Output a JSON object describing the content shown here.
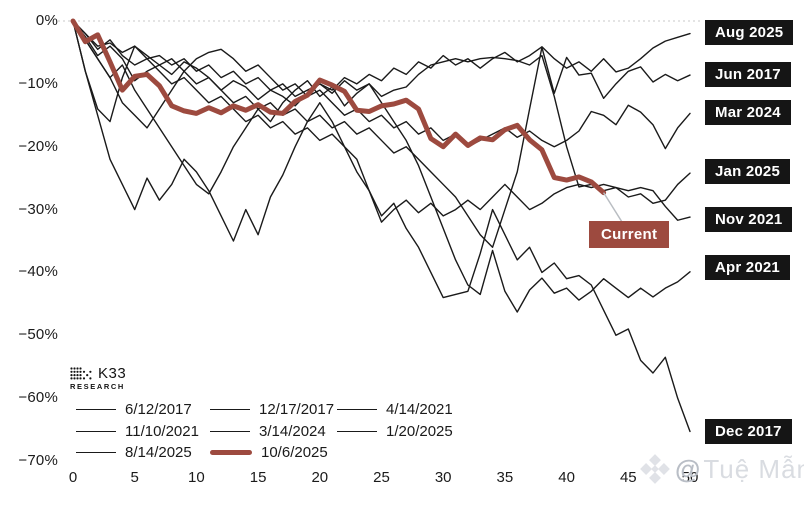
{
  "axes": {
    "y": [
      "0%",
      "−10%",
      "−20%",
      "−30%",
      "−40%",
      "−50%",
      "−60%",
      "−70%"
    ],
    "x": [
      "0",
      "5",
      "10",
      "15",
      "20",
      "25",
      "30",
      "35",
      "40",
      "45",
      "50"
    ]
  },
  "right_labels": [
    "Aug 2025",
    "Jun 2017",
    "Mar 2024",
    "Jan 2025",
    "Nov 2021",
    "Apr 2021",
    "Dec 2017"
  ],
  "current_label": "Current",
  "legend": {
    "items": [
      {
        "label": "6/12/2017",
        "swatch": "thin"
      },
      {
        "label": "12/17/2017",
        "swatch": "thin"
      },
      {
        "label": "4/14/2021",
        "swatch": "thin"
      },
      {
        "label": "11/10/2021",
        "swatch": "thin"
      },
      {
        "label": "3/14/2024",
        "swatch": "thin"
      },
      {
        "label": "1/20/2025",
        "swatch": "thin"
      },
      {
        "label": "8/14/2025",
        "swatch": "thin"
      },
      {
        "label": "10/6/2025",
        "swatch": "thick"
      }
    ]
  },
  "branding": {
    "name": "K33",
    "sub": "RESEARCH"
  },
  "watermark": {
    "at": "@",
    "text": "Tuệ Mẫn"
  },
  "colors": {
    "line_black": "#1a1a1a",
    "highlight_red": "#9d4a3f",
    "chip_bg": "#151515",
    "gridline": "#dcdcdc",
    "leader": "#b9bdc2"
  },
  "chart_data": {
    "type": "line",
    "x_range": [
      0,
      50
    ],
    "y_range": [
      -70,
      0
    ],
    "x_ticks": [
      0,
      5,
      10,
      15,
      20,
      25,
      30,
      35,
      40,
      45,
      50
    ],
    "y_ticks": [
      0,
      -10,
      -20,
      -30,
      -40,
      -50,
      -60,
      -70
    ],
    "y_unit": "percent_drawdown",
    "grid": "top-zero-line-only",
    "legend_position": "bottom-left",
    "annotation": {
      "text": "Current",
      "series": "10/6/2025",
      "at_x": 43,
      "at_y": -27.3
    },
    "series": [
      {
        "name": "6/12/2017",
        "end_label": "Jun 2017",
        "emphasis": false,
        "values": [
          0,
          -8,
          -14,
          -16,
          -9,
          -4,
          -5.5,
          -7,
          -6,
          -8,
          -10,
          -9,
          -11,
          -13,
          -12,
          -14,
          -13,
          -15,
          -14,
          -16,
          -15,
          -17,
          -16,
          -18,
          -17,
          -19,
          -21,
          -20,
          -22,
          -24,
          -26,
          -28,
          -31,
          -34,
          -36,
          -30,
          -24,
          -14,
          -4.2,
          -11.5,
          -5.8,
          -8.6,
          -8.3,
          -12.3,
          -10,
          -8,
          -7.3,
          -9.7,
          -8.5,
          -9.5,
          -8.6
        ]
      },
      {
        "name": "12/17/2017",
        "end_label": "Dec 2017",
        "emphasis": false,
        "values": [
          0,
          -8,
          -15,
          -22,
          -26,
          -30,
          -25,
          -28.5,
          -26,
          -22,
          -24,
          -27,
          -31,
          -35,
          -30,
          -34,
          -28,
          -24.5,
          -20,
          -16,
          -13,
          -16,
          -20,
          -24,
          -27,
          -31,
          -29,
          -33,
          -36,
          -40,
          -44,
          -43.5,
          -43,
          -37,
          -30,
          -34,
          -38,
          -36,
          -40,
          -38.5,
          -41,
          -40.5,
          -42,
          -46,
          -50,
          -49,
          -54,
          -56,
          -53.5,
          -60,
          -65.3
        ]
      },
      {
        "name": "4/14/2021",
        "end_label": "Apr 2021",
        "emphasis": false,
        "values": [
          0,
          -3,
          -6,
          -9,
          -7,
          -11,
          -14,
          -17,
          -20,
          -23,
          -26,
          -27.5,
          -24,
          -20,
          -17,
          -14,
          -16,
          -13,
          -11,
          -9.5,
          -12,
          -10.5,
          -13.5,
          -11.5,
          -10,
          -13,
          -16,
          -19,
          -23,
          -28,
          -33,
          -38,
          -42,
          -43.5,
          -36.5,
          -43,
          -46.3,
          -42.8,
          -40.9,
          -43.3,
          -42.5,
          -44.4,
          -43,
          -41,
          -42.5,
          -44,
          -42.5,
          -43.9,
          -42.5,
          -41.5,
          -39.9
        ]
      },
      {
        "name": "11/10/2021",
        "end_label": "Nov 2021",
        "emphasis": false,
        "values": [
          0,
          -2,
          -4.5,
          -3,
          -5.5,
          -7,
          -6,
          -8,
          -10,
          -9,
          -11,
          -13,
          -12,
          -14,
          -16,
          -15,
          -17,
          -16,
          -18,
          -17,
          -19,
          -18,
          -20,
          -22,
          -27,
          -32,
          -30,
          -28.5,
          -30.5,
          -29,
          -31,
          -30,
          -28.5,
          -30,
          -28,
          -26,
          -28,
          -30,
          -29,
          -27.5,
          -26.5,
          -26,
          -26.5,
          -26,
          -26.5,
          -27,
          -26.5,
          -27,
          -29.5,
          -31.7,
          -31.2
        ]
      },
      {
        "name": "3/14/2024",
        "end_label": "Mar 2024",
        "emphasis": false,
        "values": [
          0,
          -3,
          -6,
          -9,
          -13,
          -15,
          -17,
          -14,
          -11,
          -8,
          -6,
          -5,
          -4.5,
          -6,
          -8,
          -7,
          -9,
          -11,
          -10,
          -12,
          -11,
          -13,
          -15,
          -14,
          -16,
          -15,
          -17,
          -16,
          -18,
          -17,
          -19,
          -18,
          -20,
          -19,
          -18,
          -17,
          -18.5,
          -17.5,
          -19,
          -20,
          -19,
          -17.5,
          -14.4,
          -15,
          -16.5,
          -13.4,
          -14.5,
          -16.5,
          -20.3,
          -17,
          -14.7
        ]
      },
      {
        "name": "1/20/2025",
        "end_label": "Jan 2025",
        "emphasis": false,
        "values": [
          0,
          -2,
          -4,
          -3.5,
          -5,
          -4,
          -6,
          -5.5,
          -7,
          -6,
          -8,
          -7,
          -9,
          -8,
          -10,
          -9,
          -11,
          -10,
          -12,
          -11,
          -10,
          -11.5,
          -9.5,
          -11,
          -10,
          -12,
          -11,
          -10.5,
          -8.5,
          -7,
          -6.5,
          -6,
          -6.5,
          -6,
          -5.8,
          -6,
          -6.3,
          -7,
          -5.5,
          -12,
          -20,
          -26.4,
          -26,
          -27,
          -26.5,
          -28,
          -27.5,
          -29,
          -28.5,
          -26,
          -24.2
        ]
      },
      {
        "name": "8/14/2025",
        "end_label": "Aug 2025",
        "emphasis": false,
        "values": [
          0,
          -2.5,
          -5.5,
          -4,
          -6,
          -9.5,
          -8,
          -7,
          -8.5,
          -6.5,
          -7.5,
          -9,
          -11,
          -9.5,
          -10.5,
          -12.5,
          -11,
          -12,
          -13.5,
          -11.5,
          -10,
          -11,
          -9,
          -10,
          -8.5,
          -9.5,
          -7.5,
          -8.5,
          -6.5,
          -7.5,
          -5.5,
          -7,
          -6,
          -7.5,
          -6,
          -5,
          -6.5,
          -5.5,
          -4.1,
          -6,
          -7.5,
          -6.5,
          -8,
          -6,
          -8.1,
          -7.5,
          -6,
          -4.3,
          -3.2,
          -2.6,
          -2
        ]
      },
      {
        "name": "10/6/2025",
        "end_label": "Current",
        "emphasis": true,
        "values": [
          0,
          -3.3,
          -2.2,
          -6.5,
          -11,
          -8.8,
          -8.5,
          -10.3,
          -13.5,
          -14.3,
          -14.7,
          -13.8,
          -14.6,
          -13.5,
          -14.2,
          -13.3,
          -14.5,
          -14.7,
          -12.8,
          -11.8,
          -9.4,
          -10.2,
          -11.2,
          -14.2,
          -14.4,
          -13.5,
          -13.2,
          -12.6,
          -14,
          -18.7,
          -20,
          -18,
          -19.8,
          -18.6,
          -18.9,
          -17.3,
          -16.6,
          -18.9,
          -20.5,
          -24.9,
          -25.3,
          -24.8,
          -25.6,
          -27.3
        ]
      }
    ]
  }
}
